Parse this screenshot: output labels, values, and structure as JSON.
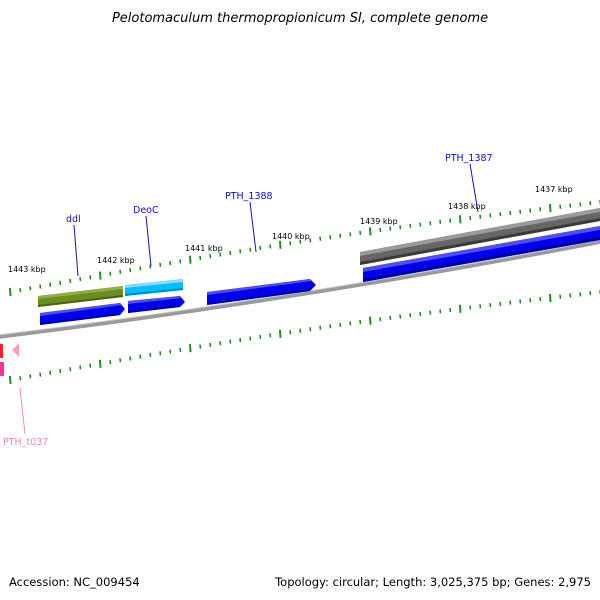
{
  "title": "Pelotomaculum thermopropionicum SI, complete genome",
  "footer": {
    "accession": "Accession: NC_009454",
    "summary": "Topology: circular; Length: 3,025,375 bp; Genes: 2,975"
  },
  "tick_labels": [
    "1443 kbp",
    "1442 kbp",
    "1441 kbp",
    "1440 kbp",
    "1439 kbp",
    "1438 kbp",
    "1437 kbp"
  ],
  "gene_labels": [
    "ddl",
    "DeoC",
    "PTH_1388",
    "PTH_1387"
  ],
  "rna_labels": [
    "PTH_t037"
  ],
  "colors": {
    "cds": "#0000ee",
    "ddl": "#6b8e23",
    "deoc": "#00bfff",
    "other": "#666666",
    "trna": "#ff3399",
    "tick": "#228b22",
    "backbone": "#888888",
    "label": "#1111aa",
    "rna_label": "#ee88bb"
  }
}
